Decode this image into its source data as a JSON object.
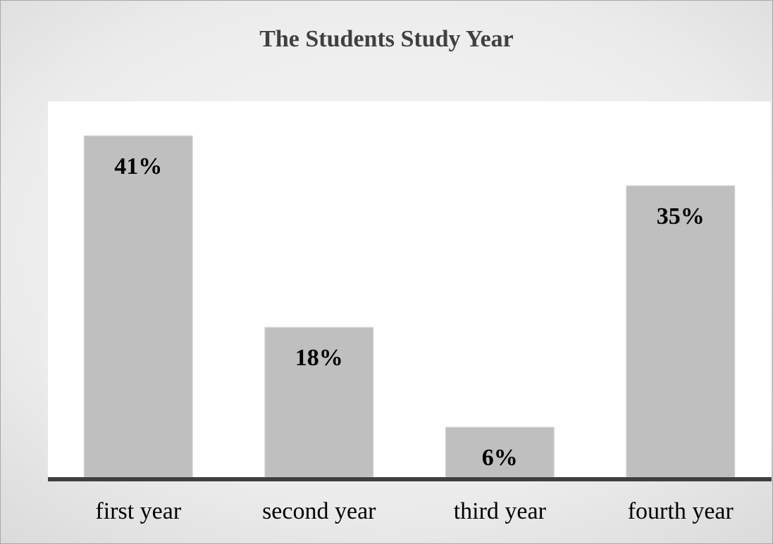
{
  "chart_data": {
    "type": "bar",
    "title": "The Students Study Year",
    "xlabel": "",
    "ylabel": "",
    "categories": [
      "first year",
      "second year",
      "third year",
      "fourth year"
    ],
    "values": [
      41,
      18,
      6,
      35
    ],
    "value_labels": [
      "41%",
      "18%",
      "6%",
      "35%"
    ],
    "unit": "%",
    "ylim": [
      0,
      45
    ],
    "grid": false,
    "legend": "none",
    "bar_color": "#bfbfbf",
    "axis_color": "#3f3f3f",
    "plot_background": "#ffffff"
  }
}
